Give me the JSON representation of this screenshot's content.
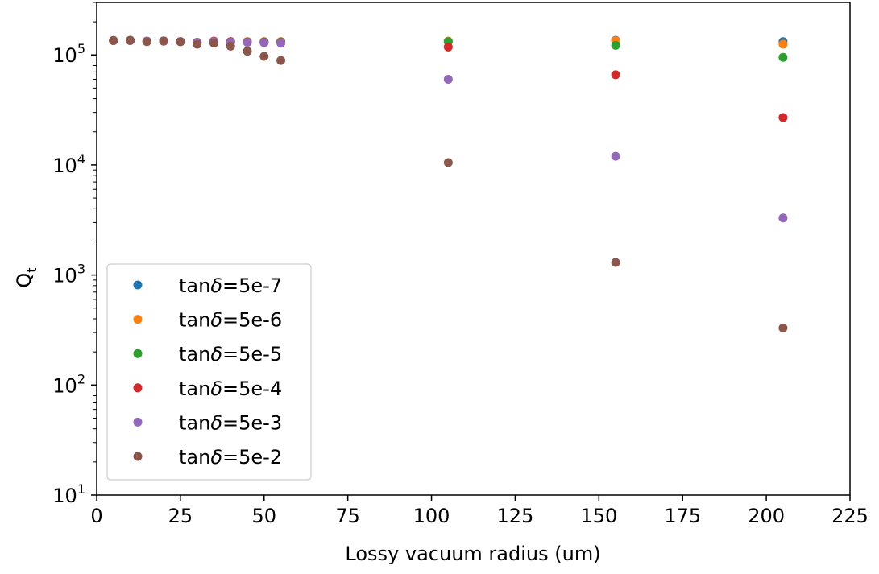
{
  "chart_data": {
    "type": "scatter",
    "xlabel": "Lossy vacuum radius (um)",
    "ylabel": "Q",
    "ylabel_sub": "t",
    "xlim": [
      0,
      225
    ],
    "ylim": [
      10,
      300000
    ],
    "yscale": "log",
    "xticks": [
      0,
      25,
      50,
      75,
      100,
      125,
      150,
      175,
      200,
      225
    ],
    "yticks": [
      {
        "value": 10,
        "base": "10",
        "exp": "1"
      },
      {
        "value": 100,
        "base": "10",
        "exp": "2"
      },
      {
        "value": 1000,
        "base": "10",
        "exp": "3"
      },
      {
        "value": 10000,
        "base": "10",
        "exp": "4"
      },
      {
        "value": 100000,
        "base": "10",
        "exp": "5"
      }
    ],
    "grid": false,
    "legend_position": "lower-left",
    "series": [
      {
        "name": "tanδ=5e-7",
        "name_prefix": "tan",
        "name_symbol": "δ",
        "name_suffix": "=5e-7",
        "color": "#1f77b4",
        "x": [
          5,
          10,
          15,
          20,
          25,
          30,
          35,
          40,
          45,
          50,
          55,
          105,
          155,
          205
        ],
        "y": [
          135000,
          135000,
          133000,
          134000,
          132000,
          130000,
          133000,
          132000,
          132000,
          132000,
          132000,
          133000,
          136000,
          132000
        ]
      },
      {
        "name": "tanδ=5e-6",
        "name_prefix": "tan",
        "name_symbol": "δ",
        "name_suffix": "=5e-6",
        "color": "#ff7f0e",
        "x": [
          5,
          10,
          15,
          20,
          25,
          30,
          35,
          40,
          45,
          50,
          55,
          105,
          155,
          205
        ],
        "y": [
          135000,
          135000,
          133000,
          134000,
          132000,
          130000,
          133000,
          132000,
          132000,
          132000,
          132000,
          133000,
          135000,
          125000
        ]
      },
      {
        "name": "tanδ=5e-5",
        "name_prefix": "tan",
        "name_symbol": "δ",
        "name_suffix": "=5e-5",
        "color": "#2ca02c",
        "x": [
          5,
          10,
          15,
          20,
          25,
          30,
          35,
          40,
          45,
          50,
          55,
          105,
          155,
          205
        ],
        "y": [
          135000,
          135000,
          133000,
          134000,
          132000,
          130000,
          133000,
          132000,
          131000,
          131000,
          131000,
          132000,
          122000,
          95000
        ]
      },
      {
        "name": "tanδ=5e-4",
        "name_prefix": "tan",
        "name_symbol": "δ",
        "name_suffix": "=5e-4",
        "color": "#d62728",
        "x": [
          5,
          10,
          15,
          20,
          25,
          30,
          35,
          40,
          45,
          50,
          55,
          105,
          155,
          205
        ],
        "y": [
          135000,
          135000,
          133000,
          134000,
          132000,
          130000,
          133000,
          132000,
          131000,
          130000,
          129000,
          118000,
          66000,
          27000
        ]
      },
      {
        "name": "tanδ=5e-3",
        "name_prefix": "tan",
        "name_symbol": "δ",
        "name_suffix": "=5e-3",
        "color": "#9467bd",
        "x": [
          5,
          10,
          15,
          20,
          25,
          30,
          35,
          40,
          45,
          50,
          55,
          105,
          155,
          205
        ],
        "y": [
          135000,
          135000,
          133000,
          134000,
          132000,
          130000,
          132000,
          131000,
          130000,
          129000,
          128000,
          60000,
          12000,
          3300
        ]
      },
      {
        "name": "tanδ=5e-2",
        "name_prefix": "tan",
        "name_symbol": "δ",
        "name_suffix": "=5e-2",
        "color": "#8c564b",
        "x": [
          5,
          10,
          15,
          20,
          25,
          30,
          35,
          40,
          45,
          50,
          55,
          105,
          155,
          205
        ],
        "y": [
          135000,
          136000,
          132000,
          133000,
          132000,
          125000,
          128000,
          120000,
          108000,
          97000,
          89000,
          10500,
          1300,
          330
        ]
      }
    ]
  }
}
